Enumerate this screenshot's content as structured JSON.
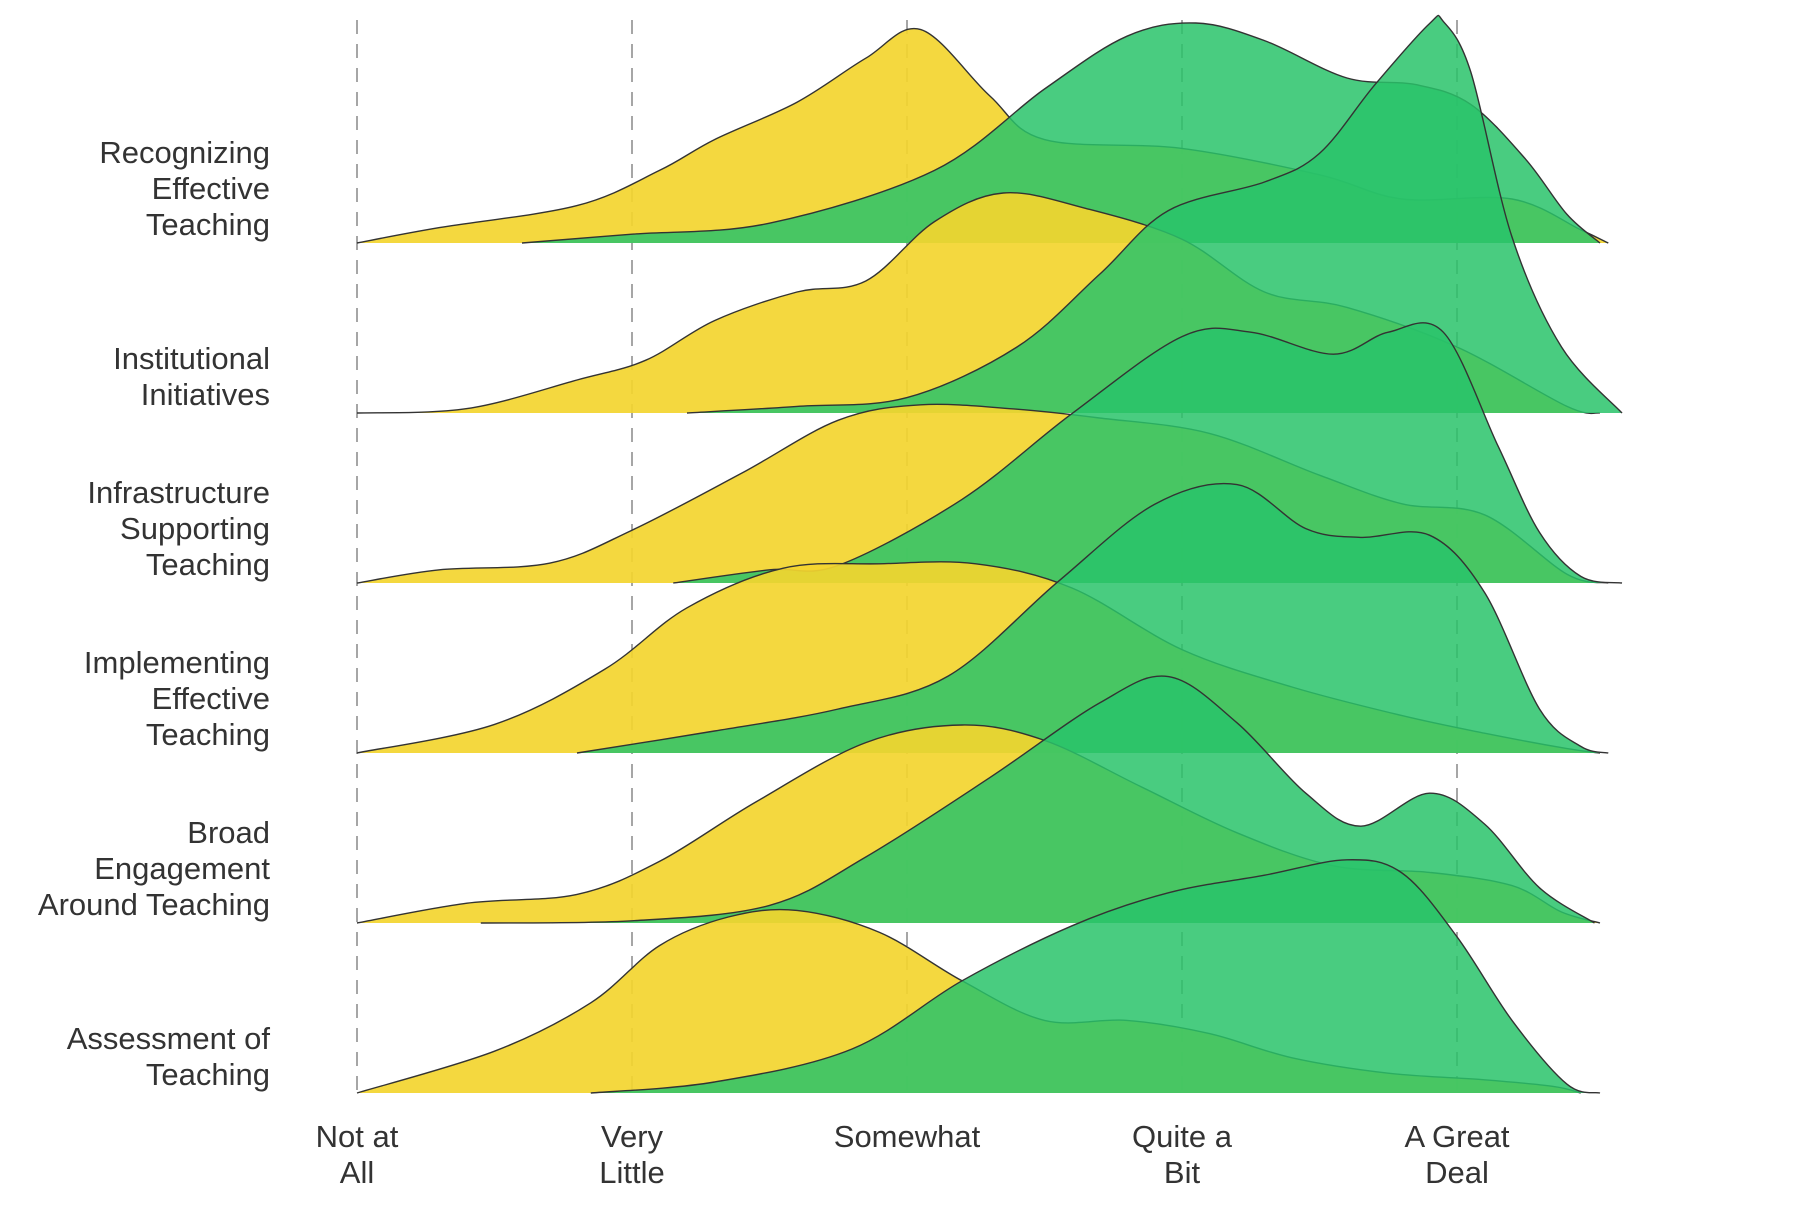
{
  "chart_data": {
    "type": "ridgeline",
    "title": "",
    "xlabel": "",
    "ylabel": "",
    "x_range": [
      1,
      5.6
    ],
    "x_ticks": [
      {
        "value": 1,
        "lines": [
          "Not at",
          "All"
        ]
      },
      {
        "value": 2,
        "lines": [
          "Very",
          "Little"
        ]
      },
      {
        "value": 3,
        "lines": [
          "Somewhat"
        ]
      },
      {
        "value": 4,
        "lines": [
          "Quite a",
          "Bit"
        ]
      },
      {
        "value": 5,
        "lines": [
          "A Great",
          "Deal"
        ]
      }
    ],
    "grid": {
      "vertical_dashed": true
    },
    "legend": "none",
    "series_colors": [
      "#f3d52f",
      "#29c36a"
    ],
    "ridges": [
      {
        "label_lines": [
          "Recognizing",
          "Effective",
          "Teaching"
        ],
        "densities": [
          {
            "color": "#f3d52f",
            "points": [
              [
                1.0,
                0.0
              ],
              [
                1.3,
                0.07
              ],
              [
                1.8,
                0.17
              ],
              [
                2.1,
                0.33
              ],
              [
                2.3,
                0.47
              ],
              [
                2.6,
                0.64
              ],
              [
                2.85,
                0.84
              ],
              [
                3.05,
                0.97
              ],
              [
                3.3,
                0.67
              ],
              [
                3.5,
                0.47
              ],
              [
                4.0,
                0.43
              ],
              [
                4.5,
                0.31
              ],
              [
                4.8,
                0.2
              ],
              [
                5.2,
                0.2
              ],
              [
                5.45,
                0.06
              ],
              [
                5.55,
                0.0
              ]
            ]
          },
          {
            "color": "#29c36a",
            "points": [
              [
                1.6,
                0.0
              ],
              [
                2.0,
                0.04
              ],
              [
                2.5,
                0.09
              ],
              [
                3.1,
                0.33
              ],
              [
                3.5,
                0.7
              ],
              [
                3.8,
                0.94
              ],
              [
                4.05,
                1.0
              ],
              [
                4.3,
                0.92
              ],
              [
                4.6,
                0.75
              ],
              [
                4.85,
                0.72
              ],
              [
                5.05,
                0.63
              ],
              [
                5.25,
                0.38
              ],
              [
                5.4,
                0.13
              ],
              [
                5.52,
                0.0
              ]
            ]
          }
        ]
      },
      {
        "label_lines": [
          "Institutional",
          "Initiatives"
        ],
        "densities": [
          {
            "color": "#f3d52f",
            "points": [
              [
                1.0,
                0.0
              ],
              [
                1.4,
                0.02
              ],
              [
                1.8,
                0.15
              ],
              [
                2.05,
                0.24
              ],
              [
                2.3,
                0.42
              ],
              [
                2.6,
                0.55
              ],
              [
                2.85,
                0.6
              ],
              [
                3.1,
                0.87
              ],
              [
                3.35,
                1.0
              ],
              [
                3.65,
                0.93
              ],
              [
                4.0,
                0.79
              ],
              [
                4.3,
                0.55
              ],
              [
                4.6,
                0.48
              ],
              [
                5.0,
                0.3
              ],
              [
                5.4,
                0.03
              ],
              [
                5.52,
                0.0
              ]
            ]
          },
          {
            "color": "#29c36a",
            "points": [
              [
                2.2,
                0.0
              ],
              [
                2.6,
                0.03
              ],
              [
                3.0,
                0.07
              ],
              [
                3.4,
                0.3
              ],
              [
                3.7,
                0.63
              ],
              [
                3.95,
                0.92
              ],
              [
                4.3,
                1.05
              ],
              [
                4.5,
                1.18
              ],
              [
                4.7,
                1.49
              ],
              [
                4.9,
                1.77
              ],
              [
                4.95,
                1.78
              ],
              [
                5.05,
                1.55
              ],
              [
                5.2,
                0.8
              ],
              [
                5.38,
                0.3
              ],
              [
                5.6,
                0.0
              ]
            ]
          }
        ]
      },
      {
        "label_lines": [
          "Infrastructure",
          "Supporting",
          "Teaching"
        ],
        "densities": [
          {
            "color": "#f3d52f",
            "points": [
              [
                1.0,
                0.0
              ],
              [
                1.3,
                0.06
              ],
              [
                1.7,
                0.09
              ],
              [
                2.0,
                0.24
              ],
              [
                2.4,
                0.5
              ],
              [
                2.75,
                0.74
              ],
              [
                3.05,
                0.81
              ],
              [
                3.4,
                0.79
              ],
              [
                3.7,
                0.75
              ],
              [
                4.1,
                0.68
              ],
              [
                4.5,
                0.49
              ],
              [
                4.8,
                0.36
              ],
              [
                5.1,
                0.31
              ],
              [
                5.4,
                0.04
              ],
              [
                5.55,
                0.0
              ]
            ]
          },
          {
            "color": "#29c36a",
            "points": [
              [
                2.15,
                0.0
              ],
              [
                2.5,
                0.06
              ],
              [
                2.75,
                0.08
              ],
              [
                3.2,
                0.38
              ],
              [
                3.6,
                0.77
              ],
              [
                4.0,
                1.12
              ],
              [
                4.25,
                1.14
              ],
              [
                4.55,
                1.04
              ],
              [
                4.75,
                1.14
              ],
              [
                4.95,
                1.14
              ],
              [
                5.15,
                0.62
              ],
              [
                5.3,
                0.23
              ],
              [
                5.45,
                0.03
              ],
              [
                5.6,
                0.0
              ]
            ]
          }
        ]
      },
      {
        "label_lines": [
          "Implementing",
          "Effective",
          "Teaching"
        ],
        "densities": [
          {
            "color": "#f3d52f",
            "points": [
              [
                1.0,
                0.0
              ],
              [
                1.5,
                0.13
              ],
              [
                1.9,
                0.38
              ],
              [
                2.2,
                0.66
              ],
              [
                2.55,
                0.84
              ],
              [
                2.9,
                0.86
              ],
              [
                3.25,
                0.86
              ],
              [
                3.6,
                0.75
              ],
              [
                4.0,
                0.47
              ],
              [
                4.4,
                0.3
              ],
              [
                4.8,
                0.17
              ],
              [
                5.1,
                0.09
              ],
              [
                5.4,
                0.02
              ],
              [
                5.52,
                0.0
              ]
            ]
          },
          {
            "color": "#29c36a",
            "points": [
              [
                1.8,
                0.0
              ],
              [
                2.3,
                0.1
              ],
              [
                2.75,
                0.2
              ],
              [
                3.15,
                0.35
              ],
              [
                3.55,
                0.78
              ],
              [
                3.9,
                1.13
              ],
              [
                4.2,
                1.22
              ],
              [
                4.45,
                1.02
              ],
              [
                4.65,
                0.98
              ],
              [
                4.9,
                0.99
              ],
              [
                5.1,
                0.73
              ],
              [
                5.3,
                0.2
              ],
              [
                5.45,
                0.03
              ],
              [
                5.55,
                0.0
              ]
            ]
          }
        ]
      },
      {
        "label_lines": [
          "Broad",
          "Engagement",
          "Around Teaching"
        ],
        "densities": [
          {
            "color": "#f3d52f",
            "points": [
              [
                1.0,
                0.0
              ],
              [
                1.4,
                0.09
              ],
              [
                1.8,
                0.13
              ],
              [
                2.1,
                0.28
              ],
              [
                2.45,
                0.55
              ],
              [
                2.85,
                0.82
              ],
              [
                3.2,
                0.9
              ],
              [
                3.5,
                0.83
              ],
              [
                3.85,
                0.62
              ],
              [
                4.2,
                0.41
              ],
              [
                4.55,
                0.26
              ],
              [
                4.9,
                0.23
              ],
              [
                5.2,
                0.17
              ],
              [
                5.38,
                0.05
              ],
              [
                5.52,
                0.0
              ]
            ]
          },
          {
            "color": "#29c36a",
            "points": [
              [
                1.45,
                0.0
              ],
              [
                2.0,
                0.01
              ],
              [
                2.5,
                0.08
              ],
              [
                2.85,
                0.3
              ],
              [
                3.3,
                0.66
              ],
              [
                3.7,
                1.0
              ],
              [
                3.95,
                1.12
              ],
              [
                4.2,
                0.91
              ],
              [
                4.45,
                0.59
              ],
              [
                4.65,
                0.44
              ],
              [
                4.9,
                0.59
              ],
              [
                5.1,
                0.45
              ],
              [
                5.3,
                0.16
              ],
              [
                5.5,
                0.0
              ]
            ]
          }
        ]
      },
      {
        "label_lines": [
          "Assessment of",
          "Teaching"
        ],
        "densities": [
          {
            "color": "#f3d52f",
            "points": [
              [
                1.0,
                0.0
              ],
              [
                1.5,
                0.19
              ],
              [
                1.85,
                0.41
              ],
              [
                2.1,
                0.67
              ],
              [
                2.35,
                0.8
              ],
              [
                2.6,
                0.83
              ],
              [
                2.9,
                0.73
              ],
              [
                3.2,
                0.51
              ],
              [
                3.5,
                0.33
              ],
              [
                3.8,
                0.33
              ],
              [
                4.1,
                0.27
              ],
              [
                4.4,
                0.16
              ],
              [
                4.75,
                0.09
              ],
              [
                5.1,
                0.06
              ],
              [
                5.35,
                0.03
              ],
              [
                5.45,
                0.0
              ]
            ]
          },
          {
            "color": "#29c36a",
            "points": [
              [
                1.85,
                0.0
              ],
              [
                2.3,
                0.05
              ],
              [
                2.8,
                0.2
              ],
              [
                3.2,
                0.51
              ],
              [
                3.6,
                0.76
              ],
              [
                3.95,
                0.91
              ],
              [
                4.3,
                0.99
              ],
              [
                4.6,
                1.06
              ],
              [
                4.8,
                1.0
              ],
              [
                5.0,
                0.71
              ],
              [
                5.2,
                0.33
              ],
              [
                5.4,
                0.04
              ],
              [
                5.52,
                0.0
              ]
            ]
          }
        ]
      }
    ]
  }
}
